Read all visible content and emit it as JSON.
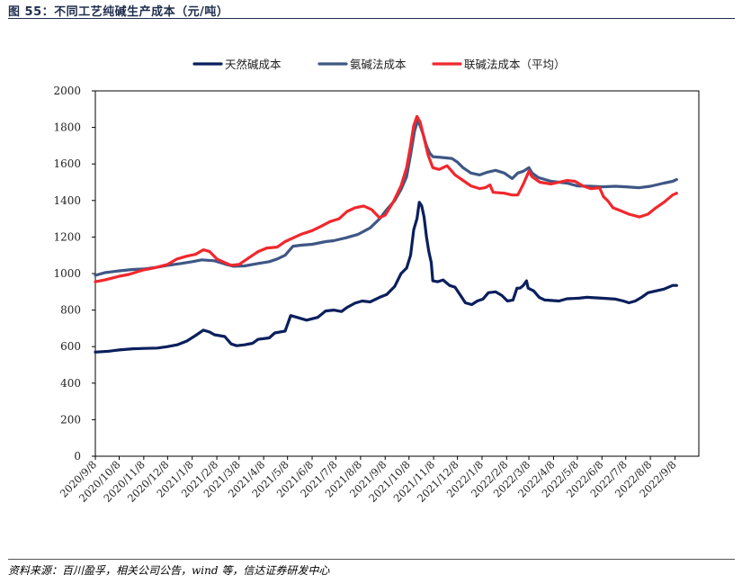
{
  "figure": {
    "title": "图 55：不同工艺纯碱生产成本（元/吨）",
    "source": "资料来源：百川盈孚，相关公司公告，wind 等，信达证券研发中心"
  },
  "chart_data": {
    "type": "line",
    "ylim": [
      0,
      2000
    ],
    "yticks": [
      0,
      200,
      400,
      600,
      800,
      1000,
      1200,
      1400,
      1600,
      1800,
      2000
    ],
    "xlim": [
      "2020-09-08",
      "2022-10-08"
    ],
    "xticks": [
      "2020/9/8",
      "2020/10/8",
      "2020/11/8",
      "2020/12/8",
      "2021/1/8",
      "2021/2/8",
      "2021/3/8",
      "2021/4/8",
      "2021/5/8",
      "2021/6/8",
      "2021/7/8",
      "2021/8/8",
      "2021/9/8",
      "2021/10/8",
      "2021/11/8",
      "2021/12/8",
      "2022/1/8",
      "2022/2/8",
      "2022/3/8",
      "2022/4/8",
      "2022/5/8",
      "2022/6/8",
      "2022/7/8",
      "2022/8/8",
      "2022/9/8"
    ],
    "grid": false,
    "legend_position": "top-center",
    "series": [
      {
        "name": "天然碱成本",
        "color": "#0a1f5c",
        "points": [
          [
            "2020-09-08",
            570
          ],
          [
            "2020-09-25",
            575
          ],
          [
            "2020-10-08",
            582
          ],
          [
            "2020-10-25",
            588
          ],
          [
            "2020-11-08",
            590
          ],
          [
            "2020-11-25",
            592
          ],
          [
            "2020-12-08",
            600
          ],
          [
            "2020-12-20",
            610
          ],
          [
            "2021-01-01",
            630
          ],
          [
            "2021-01-12",
            660
          ],
          [
            "2021-01-22",
            690
          ],
          [
            "2021-01-30",
            680
          ],
          [
            "2021-02-05",
            665
          ],
          [
            "2021-02-18",
            655
          ],
          [
            "2021-02-26",
            615
          ],
          [
            "2021-03-05",
            605
          ],
          [
            "2021-03-15",
            610
          ],
          [
            "2021-03-25",
            618
          ],
          [
            "2021-04-01",
            640
          ],
          [
            "2021-04-15",
            648
          ],
          [
            "2021-04-22",
            675
          ],
          [
            "2021-05-05",
            685
          ],
          [
            "2021-05-12",
            770
          ],
          [
            "2021-05-20",
            760
          ],
          [
            "2021-06-01",
            745
          ],
          [
            "2021-06-15",
            760
          ],
          [
            "2021-06-25",
            795
          ],
          [
            "2021-07-05",
            800
          ],
          [
            "2021-07-15",
            792
          ],
          [
            "2021-07-22",
            815
          ],
          [
            "2021-08-01",
            838
          ],
          [
            "2021-08-10",
            850
          ],
          [
            "2021-08-20",
            845
          ],
          [
            "2021-09-01",
            870
          ],
          [
            "2021-09-10",
            885
          ],
          [
            "2021-09-20",
            930
          ],
          [
            "2021-09-28",
            1000
          ],
          [
            "2021-10-05",
            1030
          ],
          [
            "2021-10-10",
            1100
          ],
          [
            "2021-10-14",
            1240
          ],
          [
            "2021-10-18",
            1300
          ],
          [
            "2021-10-21",
            1390
          ],
          [
            "2021-10-24",
            1370
          ],
          [
            "2021-10-27",
            1310
          ],
          [
            "2021-10-30",
            1200
          ],
          [
            "2021-11-02",
            1120
          ],
          [
            "2021-11-05",
            1060
          ],
          [
            "2021-11-07",
            960
          ],
          [
            "2021-11-13",
            955
          ],
          [
            "2021-11-20",
            965
          ],
          [
            "2021-11-28",
            935
          ],
          [
            "2021-12-05",
            925
          ],
          [
            "2021-12-12",
            880
          ],
          [
            "2021-12-18",
            840
          ],
          [
            "2021-12-26",
            830
          ],
          [
            "2022-01-02",
            850
          ],
          [
            "2022-01-09",
            860
          ],
          [
            "2022-01-16",
            895
          ],
          [
            "2022-01-25",
            900
          ],
          [
            "2022-02-02",
            880
          ],
          [
            "2022-02-09",
            850
          ],
          [
            "2022-02-16",
            855
          ],
          [
            "2022-02-21",
            920
          ],
          [
            "2022-02-25",
            920
          ],
          [
            "2022-03-01",
            935
          ],
          [
            "2022-03-05",
            960
          ],
          [
            "2022-03-07",
            920
          ],
          [
            "2022-03-14",
            905
          ],
          [
            "2022-03-21",
            870
          ],
          [
            "2022-03-28",
            855
          ],
          [
            "2022-04-15",
            850
          ],
          [
            "2022-04-25",
            862
          ],
          [
            "2022-05-10",
            865
          ],
          [
            "2022-05-20",
            870
          ],
          [
            "2022-06-08",
            865
          ],
          [
            "2022-06-25",
            860
          ],
          [
            "2022-07-05",
            850
          ],
          [
            "2022-07-12",
            840
          ],
          [
            "2022-07-20",
            850
          ],
          [
            "2022-07-28",
            870
          ],
          [
            "2022-08-05",
            895
          ],
          [
            "2022-08-15",
            905
          ],
          [
            "2022-08-25",
            915
          ],
          [
            "2022-09-05",
            935
          ],
          [
            "2022-09-10",
            935
          ]
        ]
      },
      {
        "name": "氨碱法成本",
        "color": "#3f5785",
        "points": [
          [
            "2020-09-08",
            990
          ],
          [
            "2020-09-20",
            1005
          ],
          [
            "2020-10-08",
            1015
          ],
          [
            "2020-10-25",
            1022
          ],
          [
            "2020-11-08",
            1025
          ],
          [
            "2020-11-25",
            1035
          ],
          [
            "2020-12-08",
            1045
          ],
          [
            "2020-12-25",
            1055
          ],
          [
            "2021-01-08",
            1065
          ],
          [
            "2021-01-20",
            1075
          ],
          [
            "2021-02-05",
            1070
          ],
          [
            "2021-02-20",
            1050
          ],
          [
            "2021-03-01",
            1040
          ],
          [
            "2021-03-15",
            1042
          ],
          [
            "2021-04-01",
            1055
          ],
          [
            "2021-04-15",
            1065
          ],
          [
            "2021-04-25",
            1080
          ],
          [
            "2021-05-05",
            1100
          ],
          [
            "2021-05-15",
            1150
          ],
          [
            "2021-05-25",
            1155
          ],
          [
            "2021-06-08",
            1160
          ],
          [
            "2021-06-25",
            1175
          ],
          [
            "2021-07-05",
            1180
          ],
          [
            "2021-07-20",
            1195
          ],
          [
            "2021-08-05",
            1215
          ],
          [
            "2021-08-20",
            1250
          ],
          [
            "2021-09-01",
            1300
          ],
          [
            "2021-09-10",
            1350
          ],
          [
            "2021-09-20",
            1400
          ],
          [
            "2021-09-28",
            1460
          ],
          [
            "2021-10-05",
            1530
          ],
          [
            "2021-10-10",
            1650
          ],
          [
            "2021-10-15",
            1780
          ],
          [
            "2021-10-19",
            1840
          ],
          [
            "2021-10-22",
            1810
          ],
          [
            "2021-10-26",
            1760
          ],
          [
            "2021-10-30",
            1700
          ],
          [
            "2021-11-03",
            1660
          ],
          [
            "2021-11-07",
            1640
          ],
          [
            "2021-11-20",
            1635
          ],
          [
            "2021-12-01",
            1630
          ],
          [
            "2021-12-08",
            1610
          ],
          [
            "2021-12-15",
            1580
          ],
          [
            "2021-12-25",
            1550
          ],
          [
            "2022-01-05",
            1540
          ],
          [
            "2022-01-15",
            1555
          ],
          [
            "2022-01-25",
            1565
          ],
          [
            "2022-02-05",
            1550
          ],
          [
            "2022-02-15",
            1520
          ],
          [
            "2022-02-22",
            1550
          ],
          [
            "2022-03-01",
            1560
          ],
          [
            "2022-03-08",
            1580
          ],
          [
            "2022-03-12",
            1550
          ],
          [
            "2022-03-20",
            1525
          ],
          [
            "2022-04-05",
            1505
          ],
          [
            "2022-04-25",
            1495
          ],
          [
            "2022-05-08",
            1480
          ],
          [
            "2022-05-25",
            1478
          ],
          [
            "2022-06-08",
            1475
          ],
          [
            "2022-06-25",
            1478
          ],
          [
            "2022-07-08",
            1475
          ],
          [
            "2022-07-25",
            1470
          ],
          [
            "2022-08-08",
            1478
          ],
          [
            "2022-08-25",
            1495
          ],
          [
            "2022-09-05",
            1505
          ],
          [
            "2022-09-10",
            1515
          ]
        ]
      },
      {
        "name": "联碱法成本（平均）",
        "color": "#f0282d",
        "points": [
          [
            "2020-09-08",
            955
          ],
          [
            "2020-09-20",
            965
          ],
          [
            "2020-10-08",
            985
          ],
          [
            "2020-10-20",
            995
          ],
          [
            "2020-11-08",
            1020
          ],
          [
            "2020-11-20",
            1030
          ],
          [
            "2020-12-08",
            1050
          ],
          [
            "2020-12-20",
            1080
          ],
          [
            "2021-01-01",
            1095
          ],
          [
            "2021-01-12",
            1105
          ],
          [
            "2021-01-22",
            1130
          ],
          [
            "2021-01-30",
            1120
          ],
          [
            "2021-02-08",
            1080
          ],
          [
            "2021-02-18",
            1060
          ],
          [
            "2021-02-26",
            1045
          ],
          [
            "2021-03-08",
            1050
          ],
          [
            "2021-03-20",
            1085
          ],
          [
            "2021-04-01",
            1120
          ],
          [
            "2021-04-12",
            1140
          ],
          [
            "2021-04-25",
            1145
          ],
          [
            "2021-05-05",
            1175
          ],
          [
            "2021-05-15",
            1195
          ],
          [
            "2021-05-25",
            1215
          ],
          [
            "2021-06-08",
            1235
          ],
          [
            "2021-06-20",
            1260
          ],
          [
            "2021-07-01",
            1285
          ],
          [
            "2021-07-12",
            1300
          ],
          [
            "2021-07-22",
            1340
          ],
          [
            "2021-08-01",
            1360
          ],
          [
            "2021-08-12",
            1370
          ],
          [
            "2021-08-22",
            1350
          ],
          [
            "2021-09-01",
            1305
          ],
          [
            "2021-09-08",
            1320
          ],
          [
            "2021-09-18",
            1390
          ],
          [
            "2021-09-28",
            1480
          ],
          [
            "2021-10-05",
            1580
          ],
          [
            "2021-10-10",
            1700
          ],
          [
            "2021-10-14",
            1810
          ],
          [
            "2021-10-18",
            1860
          ],
          [
            "2021-10-22",
            1830
          ],
          [
            "2021-10-26",
            1760
          ],
          [
            "2021-11-01",
            1650
          ],
          [
            "2021-11-07",
            1580
          ],
          [
            "2021-11-15",
            1570
          ],
          [
            "2021-11-25",
            1590
          ],
          [
            "2021-12-05",
            1540
          ],
          [
            "2021-12-15",
            1510
          ],
          [
            "2021-12-25",
            1480
          ],
          [
            "2022-01-05",
            1465
          ],
          [
            "2022-01-12",
            1470
          ],
          [
            "2022-01-18",
            1485
          ],
          [
            "2022-01-22",
            1445
          ],
          [
            "2022-02-05",
            1440
          ],
          [
            "2022-02-15",
            1430
          ],
          [
            "2022-02-22",
            1430
          ],
          [
            "2022-03-01",
            1490
          ],
          [
            "2022-03-08",
            1560
          ],
          [
            "2022-03-12",
            1530
          ],
          [
            "2022-03-22",
            1500
          ],
          [
            "2022-04-05",
            1490
          ],
          [
            "2022-04-15",
            1500
          ],
          [
            "2022-04-25",
            1510
          ],
          [
            "2022-05-05",
            1505
          ],
          [
            "2022-05-15",
            1480
          ],
          [
            "2022-05-25",
            1465
          ],
          [
            "2022-06-05",
            1470
          ],
          [
            "2022-06-10",
            1420
          ],
          [
            "2022-06-15",
            1400
          ],
          [
            "2022-06-22",
            1360
          ],
          [
            "2022-07-01",
            1345
          ],
          [
            "2022-07-12",
            1325
          ],
          [
            "2022-07-25",
            1310
          ],
          [
            "2022-08-05",
            1325
          ],
          [
            "2022-08-15",
            1360
          ],
          [
            "2022-08-25",
            1390
          ],
          [
            "2022-09-05",
            1430
          ],
          [
            "2022-09-10",
            1440
          ]
        ]
      }
    ]
  }
}
